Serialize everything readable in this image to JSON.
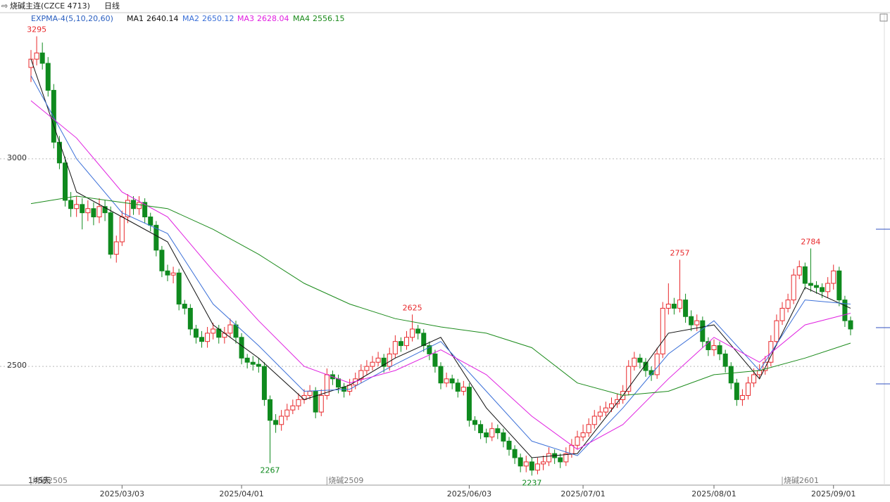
{
  "chart_data": {
    "type": "candlestick",
    "title": "烧碱主连(CZCE 4713)",
    "period": "日线",
    "indicator": "EXPMA-4(5,10,20,60)",
    "day_count_label": "145天",
    "up_color": "#e8282b",
    "down_color": "#0f8a1e",
    "grid": true,
    "ylim": [
      2214,
      3352
    ],
    "yticks": [
      2500,
      3000
    ],
    "xlim": [
      0,
      144
    ],
    "xticks": [
      {
        "value": 16,
        "label": "2025/03/03"
      },
      {
        "value": 37,
        "label": "2025/04/01"
      },
      {
        "value": 77,
        "label": "2025/06/03"
      },
      {
        "value": 97,
        "label": "2025/07/01"
      },
      {
        "value": 120,
        "label": "2025/08/01"
      },
      {
        "value": 141,
        "label": "2025/09/01"
      }
    ],
    "open": [
      3220,
      3240,
      3255,
      3230,
      3165,
      3040,
      2990,
      2900,
      2880,
      2890,
      2870,
      2880,
      2860,
      2885,
      2870,
      2770,
      2800,
      2860,
      2900,
      2880,
      2895,
      2860,
      2840,
      2780,
      2730,
      2720,
      2725,
      2650,
      2640,
      2590,
      2570,
      2560,
      2580,
      2590,
      2570,
      2580,
      2600,
      2570,
      2520,
      2510,
      2505,
      2500,
      2420,
      2370,
      2360,
      2380,
      2395,
      2405,
      2420,
      2430,
      2440,
      2390,
      2430,
      2480,
      2470,
      2450,
      2440,
      2455,
      2470,
      2490,
      2500,
      2510,
      2520,
      2500,
      2530,
      2560,
      2550,
      2570,
      2590,
      2580,
      2550,
      2530,
      2500,
      2460,
      2470,
      2460,
      2440,
      2450,
      2370,
      2360,
      2340,
      2330,
      2350,
      2340,
      2320,
      2300,
      2280,
      2260,
      2270,
      2250,
      2265,
      2270,
      2290,
      2280,
      2270,
      2290,
      2310,
      2330,
      2340,
      2360,
      2380,
      2390,
      2400,
      2410,
      2420,
      2440,
      2500,
      2520,
      2510,
      2490,
      2480,
      2530,
      2640,
      2650,
      2640,
      2660,
      2620,
      2600,
      2610,
      2560,
      2540,
      2550,
      2530,
      2500,
      2460,
      2420,
      2430,
      2460,
      2480,
      2490,
      2510,
      2560,
      2610,
      2640,
      2660,
      2720,
      2740,
      2700,
      2695,
      2690,
      2680,
      2700,
      2730,
      2660,
      2610
    ],
    "high": [
      3262,
      3295,
      3280,
      3245,
      3180,
      3055,
      3005,
      2920,
      2910,
      2905,
      2900,
      2895,
      2905,
      2900,
      2885,
      2815,
      2875,
      2915,
      2910,
      2910,
      2905,
      2870,
      2850,
      2790,
      2745,
      2740,
      2735,
      2660,
      2650,
      2600,
      2585,
      2595,
      2605,
      2600,
      2595,
      2615,
      2610,
      2580,
      2530,
      2525,
      2520,
      2510,
      2430,
      2385,
      2395,
      2410,
      2420,
      2435,
      2445,
      2455,
      2450,
      2445,
      2495,
      2490,
      2480,
      2460,
      2470,
      2485,
      2505,
      2515,
      2525,
      2535,
      2530,
      2545,
      2575,
      2570,
      2585,
      2625,
      2600,
      2590,
      2560,
      2540,
      2510,
      2485,
      2480,
      2470,
      2465,
      2460,
      2380,
      2370,
      2350,
      2365,
      2360,
      2350,
      2330,
      2310,
      2290,
      2285,
      2280,
      2280,
      2285,
      2305,
      2300,
      2290,
      2305,
      2325,
      2345,
      2360,
      2375,
      2395,
      2405,
      2415,
      2425,
      2435,
      2455,
      2515,
      2535,
      2530,
      2520,
      2500,
      2545,
      2655,
      2700,
      2665,
      2757,
      2675,
      2635,
      2625,
      2620,
      2570,
      2565,
      2560,
      2540,
      2510,
      2470,
      2445,
      2475,
      2495,
      2505,
      2525,
      2575,
      2625,
      2655,
      2675,
      2735,
      2755,
      2750,
      2784,
      2705,
      2700,
      2715,
      2745,
      2740,
      2670,
      2620
    ],
    "low": [
      3185,
      3225,
      3215,
      3150,
      3025,
      2975,
      2885,
      2860,
      2860,
      2830,
      2850,
      2840,
      2845,
      2850,
      2760,
      2750,
      2790,
      2845,
      2865,
      2865,
      2845,
      2825,
      2765,
      2715,
      2705,
      2700,
      2635,
      2625,
      2575,
      2555,
      2545,
      2545,
      2565,
      2555,
      2555,
      2570,
      2555,
      2505,
      2495,
      2490,
      2485,
      2405,
      2267,
      2340,
      2345,
      2370,
      2385,
      2395,
      2410,
      2420,
      2375,
      2380,
      2420,
      2455,
      2435,
      2425,
      2430,
      2445,
      2460,
      2480,
      2490,
      2500,
      2485,
      2490,
      2520,
      2535,
      2540,
      2560,
      2565,
      2535,
      2515,
      2485,
      2445,
      2450,
      2445,
      2425,
      2430,
      2355,
      2345,
      2325,
      2315,
      2320,
      2325,
      2305,
      2285,
      2265,
      2245,
      2245,
      2237,
      2240,
      2250,
      2260,
      2265,
      2255,
      2260,
      2280,
      2300,
      2320,
      2330,
      2350,
      2370,
      2380,
      2390,
      2400,
      2410,
      2430,
      2490,
      2495,
      2475,
      2465,
      2470,
      2520,
      2625,
      2625,
      2630,
      2605,
      2585,
      2585,
      2545,
      2525,
      2525,
      2515,
      2485,
      2445,
      2405,
      2405,
      2420,
      2450,
      2470,
      2480,
      2500,
      2550,
      2600,
      2630,
      2650,
      2710,
      2685,
      2680,
      2675,
      2665,
      2665,
      2685,
      2645,
      2595,
      2575
    ],
    "close": [
      3240,
      3255,
      3230,
      3165,
      3040,
      2990,
      2900,
      2880,
      2890,
      2870,
      2880,
      2860,
      2885,
      2870,
      2770,
      2800,
      2860,
      2900,
      2880,
      2895,
      2860,
      2840,
      2780,
      2730,
      2720,
      2725,
      2650,
      2640,
      2590,
      2570,
      2560,
      2580,
      2590,
      2570,
      2580,
      2600,
      2570,
      2520,
      2510,
      2505,
      2500,
      2420,
      2370,
      2360,
      2380,
      2395,
      2405,
      2420,
      2430,
      2440,
      2390,
      2430,
      2480,
      2470,
      2450,
      2440,
      2455,
      2470,
      2490,
      2500,
      2510,
      2520,
      2500,
      2530,
      2560,
      2550,
      2570,
      2590,
      2580,
      2550,
      2530,
      2500,
      2460,
      2470,
      2460,
      2440,
      2450,
      2370,
      2360,
      2340,
      2330,
      2350,
      2340,
      2320,
      2300,
      2280,
      2260,
      2270,
      2250,
      2265,
      2270,
      2290,
      2280,
      2270,
      2290,
      2310,
      2330,
      2340,
      2360,
      2380,
      2390,
      2400,
      2410,
      2420,
      2440,
      2500,
      2520,
      2510,
      2490,
      2480,
      2530,
      2640,
      2650,
      2640,
      2660,
      2620,
      2600,
      2610,
      2560,
      2540,
      2550,
      2530,
      2500,
      2460,
      2420,
      2430,
      2460,
      2480,
      2490,
      2510,
      2560,
      2610,
      2640,
      2660,
      2720,
      2740,
      2700,
      2695,
      2690,
      2680,
      2700,
      2730,
      2660,
      2610,
      2590
    ],
    "ma_x": [
      0,
      8,
      16,
      24,
      32,
      40,
      48,
      56,
      64,
      72,
      80,
      88,
      96,
      104,
      112,
      120,
      128,
      136,
      144
    ],
    "series": [
      {
        "name": "MA1",
        "last": 2640.14,
        "color": "#111111",
        "values": [
          3240,
          2920,
          2860,
          2800,
          2600,
          2520,
          2420,
          2455,
          2520,
          2570,
          2400,
          2280,
          2290,
          2430,
          2580,
          2600,
          2470,
          2690,
          2640
        ]
      },
      {
        "name": "MA2",
        "last": 2650.12,
        "color": "#3a6fd8",
        "values": [
          3200,
          3000,
          2870,
          2820,
          2650,
          2550,
          2440,
          2445,
          2505,
          2560,
          2440,
          2320,
          2285,
          2400,
          2530,
          2610,
          2490,
          2660,
          2650
        ]
      },
      {
        "name": "MA3",
        "last": 2628.04,
        "color": "#e020e0",
        "values": [
          3140,
          3050,
          2920,
          2860,
          2730,
          2610,
          2500,
          2460,
          2490,
          2540,
          2480,
          2380,
          2300,
          2360,
          2470,
          2570,
          2510,
          2600,
          2628
        ]
      },
      {
        "name": "MA4",
        "last": 2556.15,
        "color": "#1a8a1a",
        "values": [
          2892,
          2910,
          2895,
          2880,
          2830,
          2770,
          2700,
          2650,
          2615,
          2595,
          2580,
          2545,
          2460,
          2430,
          2440,
          2480,
          2490,
          2520,
          2556
        ]
      }
    ],
    "annotations": [
      {
        "x": 1,
        "value": 3295,
        "color": "#e8282b"
      },
      {
        "x": 42,
        "value": 2267,
        "color": "#0f8a1e"
      },
      {
        "x": 67,
        "value": 2625,
        "color": "#e8282b"
      },
      {
        "x": 88,
        "value": 2237,
        "color": "#0f8a1e"
      },
      {
        "x": 114,
        "value": 2757,
        "color": "#e8282b"
      },
      {
        "x": 137,
        "value": 2784,
        "color": "#e8282b"
      }
    ],
    "contracts": [
      {
        "x": 0,
        "label": "烧碱2505"
      },
      {
        "x": 52,
        "label": "烧碱2509"
      },
      {
        "x": 132,
        "label": "烧碱2601"
      }
    ]
  }
}
